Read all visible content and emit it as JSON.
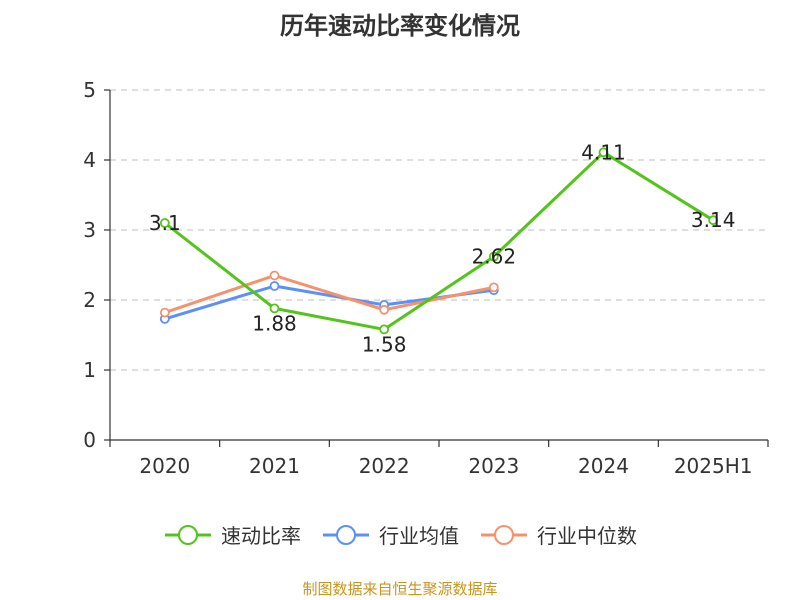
{
  "chart_data": {
    "type": "line",
    "title": "历年速动比率变化情况",
    "categories": [
      "2020",
      "2021",
      "2022",
      "2023",
      "2024",
      "2025H1"
    ],
    "ylim": [
      0,
      5
    ],
    "yticks": [
      "0",
      "1",
      "2",
      "3",
      "4",
      "5"
    ],
    "grid": true,
    "legend_position": "bottom",
    "series": [
      {
        "name": "速动比率",
        "color": "#52c41a",
        "values": [
          3.1,
          1.88,
          1.58,
          2.62,
          4.11,
          3.14
        ],
        "labels": [
          "3.1",
          "1.88",
          "1.58",
          "2.62",
          "4.11",
          "3.14"
        ]
      },
      {
        "name": "行业均值",
        "color": "#5b8ff9",
        "values": [
          1.73,
          2.2,
          1.93,
          2.14,
          null,
          null
        ]
      },
      {
        "name": "行业中位数",
        "color": "#f6926b",
        "values": [
          1.82,
          2.35,
          1.86,
          2.18,
          null,
          null
        ]
      }
    ]
  },
  "source": {
    "text": "制图数据来自恒生聚源数据库",
    "color": "#c8961e"
  }
}
